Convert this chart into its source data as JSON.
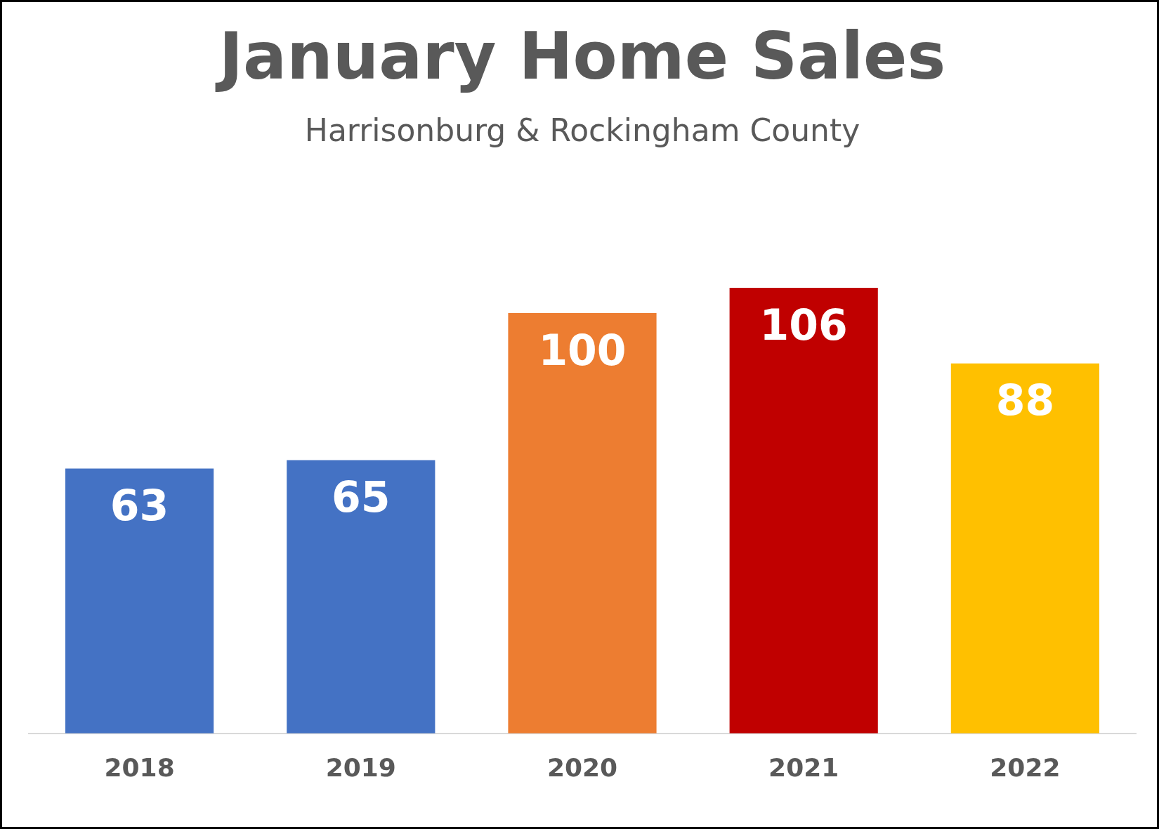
{
  "chart_data": {
    "type": "bar",
    "title": "January Home Sales",
    "subtitle": "Harrisonburg & Rockingham County",
    "categories": [
      "2018",
      "2019",
      "2020",
      "2021",
      "2022"
    ],
    "values": [
      63,
      65,
      100,
      106,
      88
    ],
    "colors": [
      "#4472c4",
      "#4472c4",
      "#ed7d31",
      "#c00000",
      "#ffc000"
    ],
    "data_labels": true
  }
}
